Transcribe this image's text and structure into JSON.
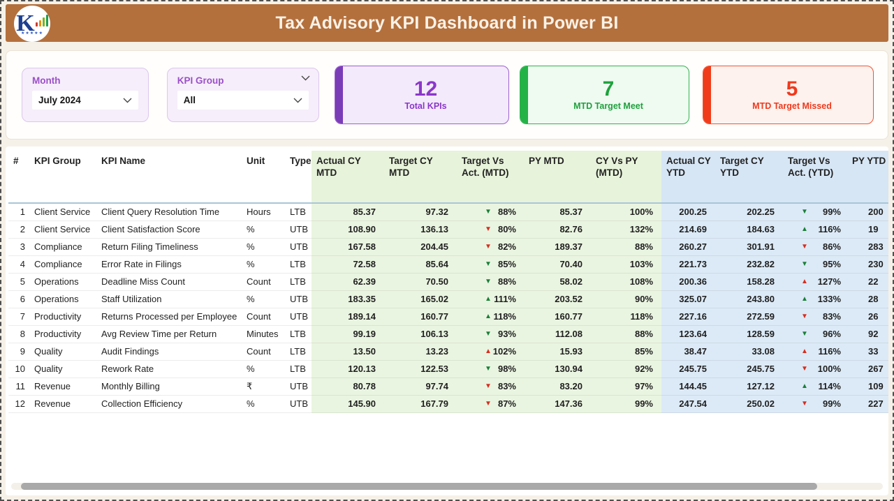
{
  "header": {
    "title": "Tax Advisory KPI Dashboard in Power BI"
  },
  "filters": {
    "month": {
      "label": "Month",
      "value": "July 2024"
    },
    "kpi_group": {
      "label": "KPI Group",
      "value": "All"
    }
  },
  "cards": [
    {
      "id": "total-kpis",
      "value": "12",
      "label": "Total KPIs",
      "accent": "#8b36c9"
    },
    {
      "id": "mtd-target-meet",
      "value": "7",
      "label": "MTD Target Meet",
      "accent": "#23b246"
    },
    {
      "id": "mtd-target-missed",
      "value": "5",
      "label": "MTD Target Missed",
      "accent": "#f0391c"
    }
  ],
  "colors": {
    "titlebar_bg": "#b3703d",
    "page_bg": "#f6f1e8",
    "mtd_section_bg": "#eaf5e1",
    "ytd_section_bg": "#dceaf7",
    "good_arrow": "#1a8038",
    "bad_arrow": "#d62e1f"
  },
  "table": {
    "sort_indicator": "▲",
    "columns": [
      "#",
      "KPI Group",
      "KPI Name",
      "Unit",
      "Type",
      "Actual CY MTD",
      "Target CY MTD",
      "Target Vs Act. (MTD)",
      "PY MTD",
      "CY Vs PY (MTD)",
      "Actual CY YTD",
      "Target CY YTD",
      "Target Vs Act. (YTD)",
      "PY YTD"
    ],
    "rows": [
      {
        "n": "1",
        "group": "Client Service",
        "name": "Client Query Resolution Time",
        "unit": "Hours",
        "type": "LTB",
        "actual_cy_mtd": "85.37",
        "target_cy_mtd": "97.32",
        "tva_mtd": {
          "arrow": "▼",
          "state": "good",
          "pct": "88%"
        },
        "py_mtd": "85.37",
        "cy_vs_py_mtd": "100%",
        "actual_cy_ytd": "200.25",
        "target_cy_ytd": "202.25",
        "tva_ytd": {
          "arrow": "▼",
          "state": "good",
          "pct": "99%"
        },
        "py_ytd": "200"
      },
      {
        "n": "2",
        "group": "Client Service",
        "name": "Client Satisfaction Score",
        "unit": "%",
        "type": "UTB",
        "actual_cy_mtd": "108.90",
        "target_cy_mtd": "136.13",
        "tva_mtd": {
          "arrow": "▼",
          "state": "bad",
          "pct": "80%"
        },
        "py_mtd": "82.76",
        "cy_vs_py_mtd": "132%",
        "actual_cy_ytd": "214.69",
        "target_cy_ytd": "184.63",
        "tva_ytd": {
          "arrow": "▲",
          "state": "good",
          "pct": "116%"
        },
        "py_ytd": "19"
      },
      {
        "n": "3",
        "group": "Compliance",
        "name": "Return Filing Timeliness",
        "unit": "%",
        "type": "UTB",
        "actual_cy_mtd": "167.58",
        "target_cy_mtd": "204.45",
        "tva_mtd": {
          "arrow": "▼",
          "state": "bad",
          "pct": "82%"
        },
        "py_mtd": "189.37",
        "cy_vs_py_mtd": "88%",
        "actual_cy_ytd": "260.27",
        "target_cy_ytd": "301.91",
        "tva_ytd": {
          "arrow": "▼",
          "state": "bad",
          "pct": "86%"
        },
        "py_ytd": "283"
      },
      {
        "n": "4",
        "group": "Compliance",
        "name": "Error Rate in Filings",
        "unit": "%",
        "type": "LTB",
        "actual_cy_mtd": "72.58",
        "target_cy_mtd": "85.64",
        "tva_mtd": {
          "arrow": "▼",
          "state": "good",
          "pct": "85%"
        },
        "py_mtd": "70.40",
        "cy_vs_py_mtd": "103%",
        "actual_cy_ytd": "221.73",
        "target_cy_ytd": "232.82",
        "tva_ytd": {
          "arrow": "▼",
          "state": "good",
          "pct": "95%"
        },
        "py_ytd": "230"
      },
      {
        "n": "5",
        "group": "Operations",
        "name": "Deadline Miss Count",
        "unit": "Count",
        "type": "LTB",
        "actual_cy_mtd": "62.39",
        "target_cy_mtd": "70.50",
        "tva_mtd": {
          "arrow": "▼",
          "state": "good",
          "pct": "88%"
        },
        "py_mtd": "58.02",
        "cy_vs_py_mtd": "108%",
        "actual_cy_ytd": "200.36",
        "target_cy_ytd": "158.28",
        "tva_ytd": {
          "arrow": "▲",
          "state": "bad",
          "pct": "127%"
        },
        "py_ytd": "22"
      },
      {
        "n": "6",
        "group": "Operations",
        "name": "Staff Utilization",
        "unit": "%",
        "type": "UTB",
        "actual_cy_mtd": "183.35",
        "target_cy_mtd": "165.02",
        "tva_mtd": {
          "arrow": "▲",
          "state": "good",
          "pct": "111%"
        },
        "py_mtd": "203.52",
        "cy_vs_py_mtd": "90%",
        "actual_cy_ytd": "325.07",
        "target_cy_ytd": "243.80",
        "tva_ytd": {
          "arrow": "▲",
          "state": "good",
          "pct": "133%"
        },
        "py_ytd": "28"
      },
      {
        "n": "7",
        "group": "Productivity",
        "name": "Returns Processed per Employee",
        "unit": "Count",
        "type": "UTB",
        "actual_cy_mtd": "189.14",
        "target_cy_mtd": "160.77",
        "tva_mtd": {
          "arrow": "▲",
          "state": "good",
          "pct": "118%"
        },
        "py_mtd": "160.77",
        "cy_vs_py_mtd": "118%",
        "actual_cy_ytd": "227.16",
        "target_cy_ytd": "272.59",
        "tva_ytd": {
          "arrow": "▼",
          "state": "bad",
          "pct": "83%"
        },
        "py_ytd": "26"
      },
      {
        "n": "8",
        "group": "Productivity",
        "name": "Avg Review Time per Return",
        "unit": "Minutes",
        "type": "LTB",
        "actual_cy_mtd": "99.19",
        "target_cy_mtd": "106.13",
        "tva_mtd": {
          "arrow": "▼",
          "state": "good",
          "pct": "93%"
        },
        "py_mtd": "112.08",
        "cy_vs_py_mtd": "88%",
        "actual_cy_ytd": "123.64",
        "target_cy_ytd": "128.59",
        "tva_ytd": {
          "arrow": "▼",
          "state": "good",
          "pct": "96%"
        },
        "py_ytd": "92"
      },
      {
        "n": "9",
        "group": "Quality",
        "name": "Audit Findings",
        "unit": "Count",
        "type": "LTB",
        "actual_cy_mtd": "13.50",
        "target_cy_mtd": "13.23",
        "tva_mtd": {
          "arrow": "▲",
          "state": "bad",
          "pct": "102%"
        },
        "py_mtd": "15.93",
        "cy_vs_py_mtd": "85%",
        "actual_cy_ytd": "38.47",
        "target_cy_ytd": "33.08",
        "tva_ytd": {
          "arrow": "▲",
          "state": "bad",
          "pct": "116%"
        },
        "py_ytd": "33"
      },
      {
        "n": "10",
        "group": "Quality",
        "name": "Rework Rate",
        "unit": "%",
        "type": "LTB",
        "actual_cy_mtd": "120.13",
        "target_cy_mtd": "122.53",
        "tva_mtd": {
          "arrow": "▼",
          "state": "good",
          "pct": "98%"
        },
        "py_mtd": "130.94",
        "cy_vs_py_mtd": "92%",
        "actual_cy_ytd": "245.75",
        "target_cy_ytd": "245.75",
        "tva_ytd": {
          "arrow": "▼",
          "state": "bad",
          "pct": "100%"
        },
        "py_ytd": "267"
      },
      {
        "n": "11",
        "group": "Revenue",
        "name": "Monthly Billing",
        "unit": "₹",
        "type": "UTB",
        "actual_cy_mtd": "80.78",
        "target_cy_mtd": "97.74",
        "tva_mtd": {
          "arrow": "▼",
          "state": "bad",
          "pct": "83%"
        },
        "py_mtd": "83.20",
        "cy_vs_py_mtd": "97%",
        "actual_cy_ytd": "144.45",
        "target_cy_ytd": "127.12",
        "tva_ytd": {
          "arrow": "▲",
          "state": "good",
          "pct": "114%"
        },
        "py_ytd": "109"
      },
      {
        "n": "12",
        "group": "Revenue",
        "name": "Collection Efficiency",
        "unit": "%",
        "type": "UTB",
        "actual_cy_mtd": "145.90",
        "target_cy_mtd": "167.79",
        "tva_mtd": {
          "arrow": "▼",
          "state": "bad",
          "pct": "87%"
        },
        "py_mtd": "147.36",
        "cy_vs_py_mtd": "99%",
        "actual_cy_ytd": "247.54",
        "target_cy_ytd": "250.02",
        "tva_ytd": {
          "arrow": "▼",
          "state": "bad",
          "pct": "99%"
        },
        "py_ytd": "227"
      }
    ]
  }
}
